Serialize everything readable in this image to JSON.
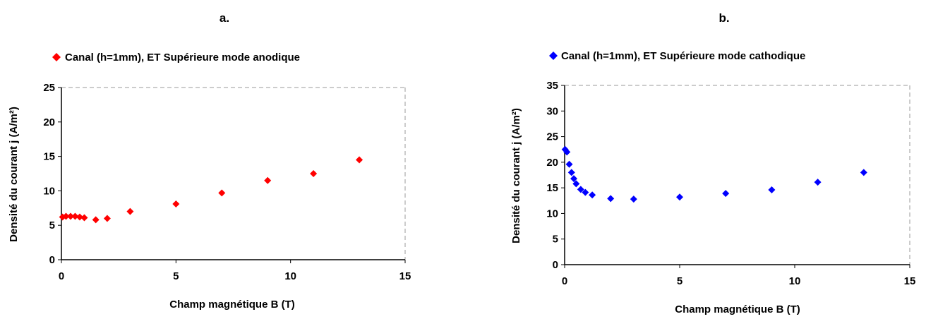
{
  "chart_data": [
    {
      "type": "scatter",
      "panel_label": "a.",
      "series": [
        {
          "name": "Canal (h=1mm), ET Supérieure mode anodique",
          "color": "#ff0000",
          "marker": "diamond",
          "x": [
            0.05,
            0.2,
            0.4,
            0.6,
            0.8,
            1.0,
            1.5,
            2.0,
            3.0,
            5.0,
            7.0,
            9.0,
            11.0,
            13.0
          ],
          "y": [
            6.2,
            6.3,
            6.3,
            6.3,
            6.2,
            6.1,
            5.8,
            6.0,
            7.0,
            8.1,
            9.7,
            11.5,
            12.5,
            14.5
          ]
        }
      ],
      "xlabel": "Champ magnétique B (T)",
      "ylabel": "Densité du courant j (A/m²)",
      "xlim": [
        0,
        15
      ],
      "ylim": [
        0,
        25
      ],
      "xticks": [
        0,
        5,
        10,
        15
      ],
      "yticks": [
        0,
        5,
        10,
        15,
        20,
        25
      ],
      "grid": false,
      "legend_position": "top"
    },
    {
      "type": "scatter",
      "panel_label": "b.",
      "series": [
        {
          "name": "Canal (h=1mm), ET Supérieure mode cathodique",
          "color": "#0000ff",
          "marker": "diamond",
          "x": [
            0.02,
            0.1,
            0.2,
            0.3,
            0.4,
            0.5,
            0.7,
            0.9,
            1.2,
            2.0,
            3.0,
            5.0,
            7.0,
            9.0,
            11.0,
            13.0
          ],
          "y": [
            22.5,
            22.0,
            19.6,
            18.0,
            16.8,
            15.8,
            14.7,
            14.1,
            13.6,
            12.9,
            12.8,
            13.2,
            13.9,
            14.6,
            16.1,
            18.0
          ]
        }
      ],
      "xlabel": "Champ magnétique B (T)",
      "ylabel": "Densité du courant j (A/m²)",
      "xlim": [
        0,
        15
      ],
      "ylim": [
        0,
        35
      ],
      "xticks": [
        0,
        5,
        10,
        15
      ],
      "yticks": [
        0,
        5,
        10,
        15,
        20,
        25,
        30,
        35
      ],
      "grid": false,
      "legend_position": "top"
    }
  ]
}
